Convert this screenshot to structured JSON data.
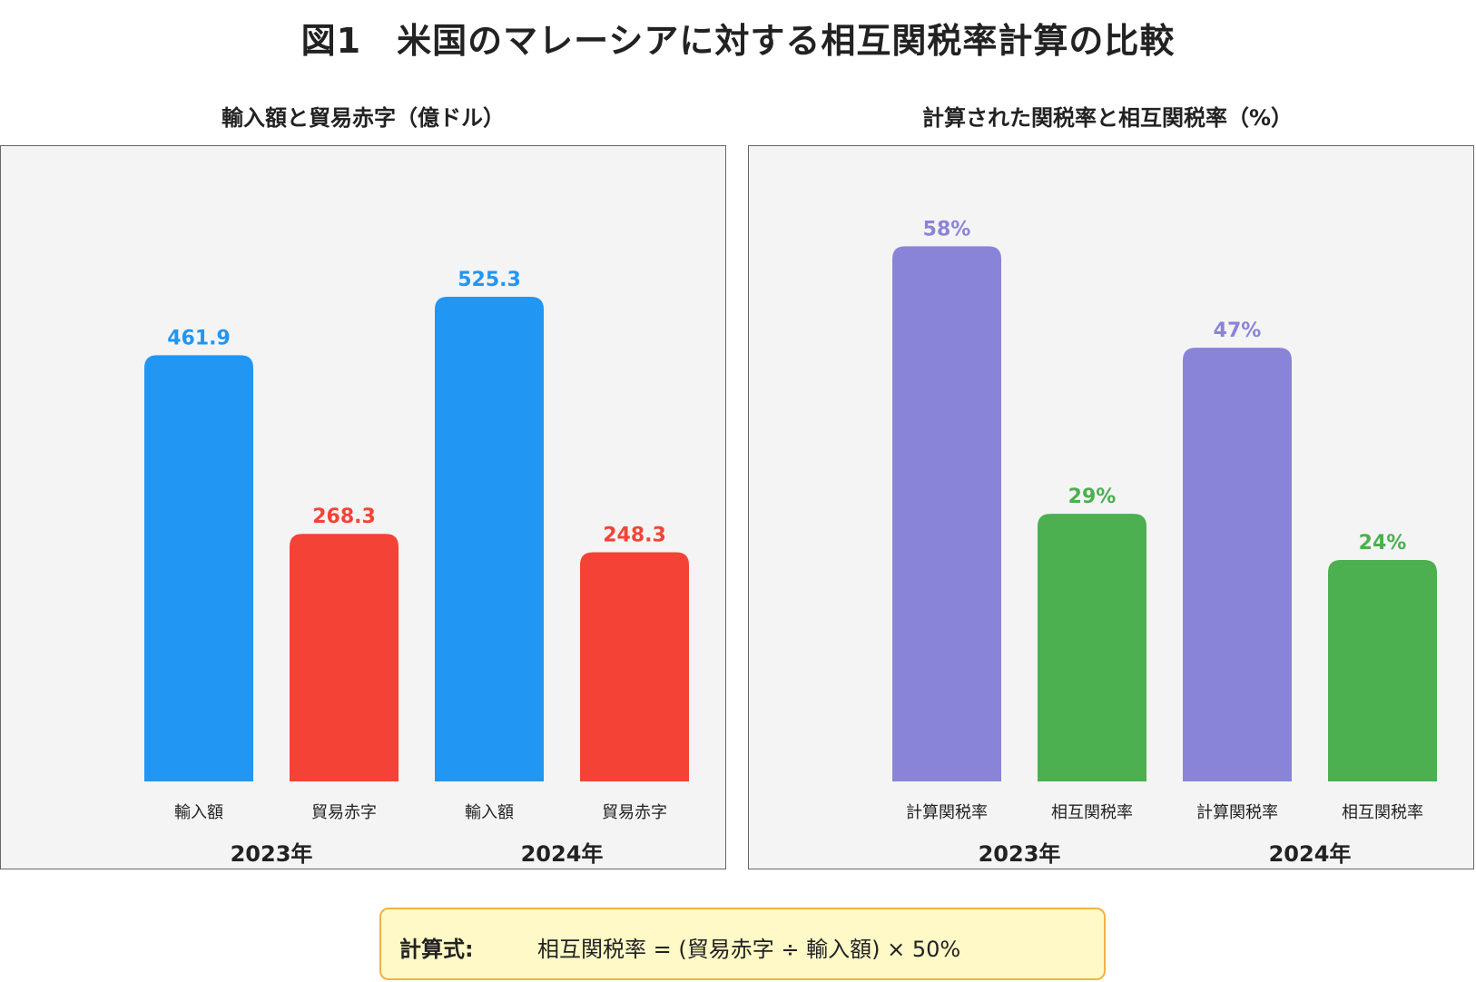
{
  "title": "図1　米国のマレーシアに対する相互関税率計算の比較",
  "formula": {
    "label": "計算式:",
    "text": "相互関税率 = (貿易赤字 ÷ 輸入額) × 50%"
  },
  "chart_data": [
    {
      "type": "bar",
      "title": "輸入額と貿易赤字（億ドル）",
      "groups": [
        "2023年",
        "2024年"
      ],
      "bar_labels": [
        "輸入額",
        "貿易赤字"
      ],
      "bars": [
        {
          "group": "2023年",
          "label": "輸入額",
          "value": 461.9,
          "value_label": "461.9",
          "color": "#2196f3"
        },
        {
          "group": "2023年",
          "label": "貿易赤字",
          "value": 268.3,
          "value_label": "268.3",
          "color": "#f44336"
        },
        {
          "group": "2024年",
          "label": "輸入額",
          "value": 525.3,
          "value_label": "525.3",
          "color": "#2196f3"
        },
        {
          "group": "2024年",
          "label": "貿易赤字",
          "value": 248.3,
          "value_label": "248.3",
          "color": "#f44336"
        }
      ],
      "ylim": [
        0,
        600
      ]
    },
    {
      "type": "bar",
      "title": "計算された関税率と相互関税率（%）",
      "groups": [
        "2023年",
        "2024年"
      ],
      "bar_labels": [
        "計算関税率",
        "相互関税率"
      ],
      "bars": [
        {
          "group": "2023年",
          "label": "計算関税率",
          "value": 58,
          "value_label": "58%",
          "color": "#8a84d8"
        },
        {
          "group": "2023年",
          "label": "相互関税率",
          "value": 29,
          "value_label": "29%",
          "color": "#4caf50"
        },
        {
          "group": "2024年",
          "label": "計算関税率",
          "value": 47,
          "value_label": "47%",
          "color": "#8a84d8"
        },
        {
          "group": "2024年",
          "label": "相互関税率",
          "value": 24,
          "value_label": "24%",
          "color": "#4caf50"
        }
      ],
      "ylim": [
        0,
        60
      ]
    }
  ]
}
